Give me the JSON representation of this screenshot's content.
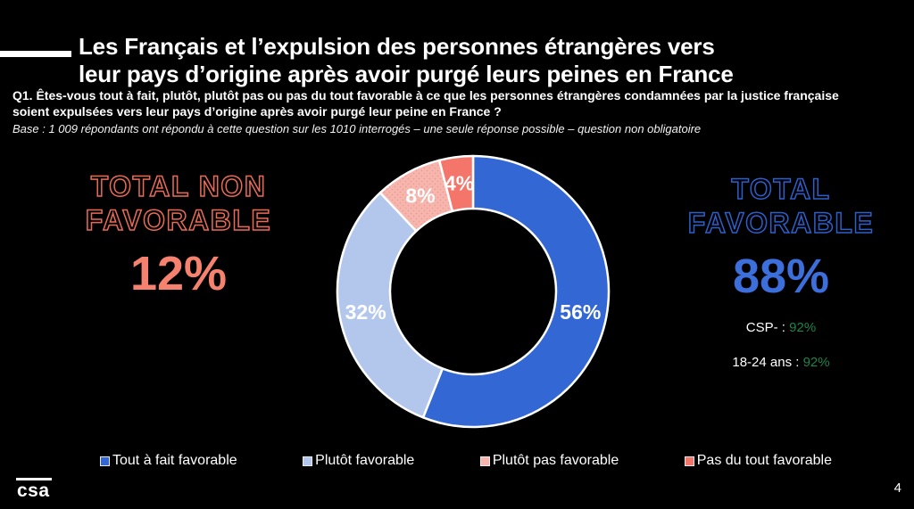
{
  "header": {
    "title_line1": "Les Français et l’expulsion des personnes étrangères vers",
    "title_line2": "leur pays d’origine après avoir purgé leurs peines en France",
    "question_line1": "Q1. Êtes-vous tout à fait, plutôt, plutôt pas ou pas du tout favorable à ce que les personnes étrangères condamnées par la justice française",
    "question_line2": "soient expulsées vers leur pays d’origine après avoir purgé leur peine en France ?",
    "base": "Base : 1 009 répondants ont répondu à cette question sur les 1010 interrogés – une seule réponse possible – question non obligatoire"
  },
  "chart_data": {
    "type": "pie",
    "subtype": "donut",
    "start_angle_deg": 0,
    "direction": "clockwise",
    "donut_hole_ratio": 0.61,
    "label_color": "#FFFFFF",
    "separator_color": "#FFFFFF",
    "legend_position": "bottom",
    "slices": [
      {
        "label": "Tout à fait favorable",
        "value": 56,
        "display": "56%",
        "color": "#3368D4"
      },
      {
        "label": "Plutôt favorable",
        "value": 32,
        "display": "32%",
        "color": "#B3C7ED"
      },
      {
        "label": "Plutôt pas favorable",
        "value": 8,
        "display": "8%",
        "color": "#F6B6AE",
        "pattern": "dots",
        "pattern_dot_color": "#EC9C92"
      },
      {
        "label": "Pas du tout favorable",
        "value": 4,
        "display": "4%",
        "color": "#F4756A"
      }
    ],
    "totals": {
      "non_favorable": {
        "label_line1": "TOTAL NON",
        "label_line2": "FAVORABLE",
        "value": "12%",
        "value_color": "#F5826E",
        "outline_color": "#E96B56"
      },
      "favorable": {
        "label_line1": "TOTAL",
        "label_line2": "FAVORABLE",
        "value": "88%",
        "value_color": "#3C6FDB",
        "outline_color": "#2E5FC9"
      }
    },
    "callouts": [
      {
        "label": "CSP- :",
        "value": "92%",
        "value_color": "#1E8449"
      },
      {
        "label": "18-24 ans :",
        "value": "92%",
        "value_color": "#1E8449"
      }
    ]
  },
  "footer": {
    "logo_text": "csa",
    "page_number": "4"
  }
}
